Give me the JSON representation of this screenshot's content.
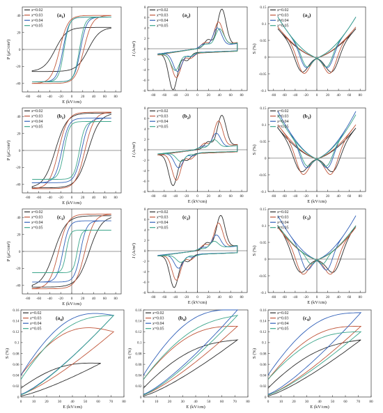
{
  "colors": {
    "x=0.02": "#2b2b2b",
    "x=0.03": "#c0563a",
    "x=0.04": "#2f5fb8",
    "x=0.05": "#3aa58a"
  },
  "legend_labels": [
    "x=0.02",
    "x=0.03",
    "x=0.04",
    "x=0.05"
  ],
  "chart_data": [
    {
      "id": "a1",
      "type": "line",
      "panel_label": "(a1)",
      "kind": "PE",
      "xlabel": "E (kV/cm)",
      "ylabel": "P (μC/cm²)",
      "xlim": [
        -90,
        90
      ],
      "ylim": [
        -50,
        50
      ],
      "xticks": [
        -80,
        -60,
        -40,
        -20,
        0,
        20,
        40,
        60,
        80
      ],
      "yticks": [
        -40,
        -20,
        0,
        20,
        40
      ],
      "series": [
        {
          "name": "x=0.02",
          "emax": 72,
          "pmax": 26,
          "pr": 18,
          "ec": 30
        },
        {
          "name": "x=0.03",
          "emax": 72,
          "pmax": 40,
          "pr": 36,
          "ec": 22
        },
        {
          "name": "x=0.04",
          "emax": 72,
          "pmax": 38,
          "pr": 26,
          "ec": 16
        },
        {
          "name": "x=0.05",
          "emax": 72,
          "pmax": 38,
          "pr": 24,
          "ec": 14
        }
      ]
    },
    {
      "id": "a2",
      "type": "line",
      "panel_label": "(a2)",
      "kind": "JE",
      "xlabel": "",
      "ylabel": "J (A/m²)",
      "xlim": [
        -90,
        90
      ],
      "ylim": [
        -8,
        8
      ],
      "xticks": [
        -80,
        -60,
        -40,
        -20,
        0,
        20,
        40,
        60,
        80
      ],
      "yticks": [
        -8,
        -6,
        -4,
        -2,
        0,
        2,
        4,
        6,
        8
      ],
      "series": [
        {
          "name": "x=0.02",
          "peak": 7.0,
          "ep": 44,
          "base": 1.0
        },
        {
          "name": "x=0.03",
          "peak": 4.5,
          "ep": 38,
          "base": 1.2
        },
        {
          "name": "x=0.04",
          "peak": 3.5,
          "ep": 36,
          "base": 1.0
        },
        {
          "name": "x=0.05",
          "peak": 3.2,
          "ep": 40,
          "base": 1.1
        }
      ]
    },
    {
      "id": "a3",
      "type": "line",
      "panel_label": "(a3)",
      "kind": "SE",
      "xlabel": "",
      "ylabel": "S (%)",
      "xlim": [
        -90,
        90
      ],
      "ylim": [
        -0.1,
        0.15
      ],
      "xticks": [
        -80,
        -60,
        -40,
        -20,
        0,
        20,
        40,
        60,
        80
      ],
      "yticks": [
        -0.1,
        -0.05,
        0,
        0.05,
        0.1,
        0.15
      ],
      "series": [
        {
          "name": "x=0.02",
          "smax": 0.085,
          "smin": -0.07,
          "ec": 30
        },
        {
          "name": "x=0.03",
          "smax": 0.09,
          "smin": -0.07,
          "ec": 26
        },
        {
          "name": "x=0.04",
          "smax": 0.12,
          "smin": -0.05,
          "ec": 22
        },
        {
          "name": "x=0.05",
          "smax": 0.12,
          "smin": -0.045,
          "ec": 20
        }
      ]
    },
    {
      "id": "b1",
      "type": "line",
      "panel_label": "(b1)",
      "kind": "PE",
      "xlabel": "E (kV/cm)",
      "ylabel": "P (μC/cm²)",
      "xlim": [
        -90,
        90
      ],
      "ylim": [
        -50,
        50
      ],
      "xticks": [
        -80,
        -60,
        -40,
        -20,
        0,
        20,
        40,
        60,
        80
      ],
      "yticks": [
        -40,
        -20,
        0,
        20,
        40
      ],
      "series": [
        {
          "name": "x=0.02",
          "emax": 72,
          "pmax": 44,
          "pr": 36,
          "ec": 30
        },
        {
          "name": "x=0.03",
          "emax": 72,
          "pmax": 45,
          "pr": 30,
          "ec": 24
        },
        {
          "name": "x=0.04",
          "emax": 72,
          "pmax": 38,
          "pr": 22,
          "ec": 18
        },
        {
          "name": "x=0.05",
          "emax": 72,
          "pmax": 34,
          "pr": 18,
          "ec": 14
        }
      ]
    },
    {
      "id": "b2",
      "type": "line",
      "panel_label": "(b2)",
      "kind": "JE",
      "xlabel": "E (kV/cm)",
      "ylabel": "J (A/m²)",
      "xlim": [
        -90,
        90
      ],
      "ylim": [
        -8,
        8
      ],
      "xticks": [
        -80,
        -60,
        -40,
        -20,
        0,
        20,
        40,
        60,
        80
      ],
      "yticks": [
        -8,
        -6,
        -4,
        -2,
        0,
        2,
        4,
        6,
        8
      ],
      "series": [
        {
          "name": "x=0.02",
          "peak": 6.0,
          "ep": 44,
          "base": 1.0
        },
        {
          "name": "x=0.03",
          "peak": 5.0,
          "ep": 38,
          "base": 1.0
        },
        {
          "name": "x=0.04",
          "peak": 2.8,
          "ep": 34,
          "base": 0.8
        },
        {
          "name": "x=0.05",
          "peak": 1.6,
          "ep": 30,
          "base": 0.8
        }
      ]
    },
    {
      "id": "b3",
      "type": "line",
      "panel_label": "(b3)",
      "kind": "SE",
      "xlabel": "E (kV/cm)",
      "ylabel": "S (%)",
      "xlim": [
        -90,
        90
      ],
      "ylim": [
        -0.1,
        0.15
      ],
      "xticks": [
        -80,
        -60,
        -40,
        -20,
        0,
        20,
        40,
        60,
        80
      ],
      "yticks": [
        -0.1,
        -0.05,
        0,
        0.05,
        0.1,
        0.15
      ],
      "series": [
        {
          "name": "x=0.02",
          "smax": 0.09,
          "smin": -0.07,
          "ec": 32
        },
        {
          "name": "x=0.03",
          "smax": 0.1,
          "smin": -0.075,
          "ec": 28
        },
        {
          "name": "x=0.04",
          "smax": 0.14,
          "smin": -0.05,
          "ec": 22
        },
        {
          "name": "x=0.05",
          "smax": 0.13,
          "smin": -0.04,
          "ec": 20
        }
      ]
    },
    {
      "id": "c1",
      "type": "line",
      "panel_label": "(c1)",
      "kind": "PE",
      "xlabel": "E (kV/cm)",
      "ylabel": "P (μC/cm²)",
      "xlim": [
        -90,
        90
      ],
      "ylim": [
        -50,
        50
      ],
      "xticks": [
        -80,
        -60,
        -40,
        -20,
        0,
        20,
        40,
        60,
        80
      ],
      "yticks": [
        -40,
        -20,
        0,
        20,
        40
      ],
      "series": [
        {
          "name": "x=0.02",
          "emax": 72,
          "pmax": 42,
          "pr": 36,
          "ec": 32
        },
        {
          "name": "x=0.03",
          "emax": 72,
          "pmax": 44,
          "pr": 28,
          "ec": 24
        },
        {
          "name": "x=0.04",
          "emax": 72,
          "pmax": 36,
          "pr": 18,
          "ec": 16
        },
        {
          "name": "x=0.05",
          "emax": 72,
          "pmax": 25,
          "pr": 10,
          "ec": 10
        }
      ]
    },
    {
      "id": "c2",
      "type": "line",
      "panel_label": "(c2)",
      "kind": "JE",
      "xlabel": "E (kV/cm)",
      "ylabel": "J (A/m²)",
      "xlim": [
        -90,
        90
      ],
      "ylim": [
        -8,
        8
      ],
      "xticks": [
        -80,
        -60,
        -40,
        -20,
        0,
        20,
        40,
        60,
        80
      ],
      "yticks": [
        -8,
        -6,
        -4,
        -2,
        0,
        2,
        4,
        6,
        8
      ],
      "series": [
        {
          "name": "x=0.02",
          "peak": 6.2,
          "ep": 42,
          "base": 1.0
        },
        {
          "name": "x=0.03",
          "peak": 4.8,
          "ep": 38,
          "base": 1.0
        },
        {
          "name": "x=0.04",
          "peak": 2.6,
          "ep": 34,
          "base": 0.9
        },
        {
          "name": "x=0.05",
          "peak": 1.4,
          "ep": 30,
          "base": 1.0
        }
      ]
    },
    {
      "id": "c3",
      "type": "line",
      "panel_label": "(c3)",
      "kind": "SE",
      "xlabel": "E (kV/cm)",
      "ylabel": "S (%)",
      "xlim": [
        -90,
        90
      ],
      "ylim": [
        -0.1,
        0.15
      ],
      "xticks": [
        -80,
        -60,
        -40,
        -20,
        0,
        20,
        40,
        60,
        80
      ],
      "yticks": [
        -0.1,
        -0.05,
        0,
        0.05,
        0.1,
        0.15
      ],
      "series": [
        {
          "name": "x=0.02",
          "smax": 0.1,
          "smin": -0.075,
          "ec": 34
        },
        {
          "name": "x=0.03",
          "smax": 0.095,
          "smin": -0.07,
          "ec": 28
        },
        {
          "name": "x=0.04",
          "smax": 0.13,
          "smin": -0.05,
          "ec": 20
        },
        {
          "name": "x=0.05",
          "smax": 0.1,
          "smin": -0.02,
          "ec": 12
        }
      ]
    },
    {
      "id": "a4",
      "type": "line",
      "panel_label": "(a4)",
      "kind": "US",
      "xlabel": "E (kV/cm)",
      "ylabel": "S (%)",
      "xlim": [
        0,
        80
      ],
      "ylim": [
        0,
        0.16
      ],
      "xticks": [
        0,
        10,
        20,
        30,
        40,
        50,
        60,
        70,
        80
      ],
      "yticks": [
        0,
        0.02,
        0.04,
        0.06,
        0.08,
        0.1,
        0.12,
        0.14,
        0.16
      ],
      "series": [
        {
          "name": "x=0.02",
          "emax": 62,
          "smax": 0.062,
          "s0": 0.002,
          "bulge": 0.018
        },
        {
          "name": "x=0.03",
          "emax": 72,
          "smax": 0.12,
          "s0": 0.005,
          "bulge": 0.045
        },
        {
          "name": "x=0.04",
          "emax": 72,
          "smax": 0.15,
          "s0": 0.005,
          "bulge": 0.05
        },
        {
          "name": "x=0.05",
          "emax": 72,
          "smax": 0.15,
          "s0": 0.004,
          "bulge": 0.04
        }
      ]
    },
    {
      "id": "b4",
      "type": "line",
      "panel_label": "(b4)",
      "kind": "US",
      "xlabel": "E (kV/cm)",
      "ylabel": "S (%)",
      "xlim": [
        0,
        80
      ],
      "ylim": [
        0,
        0.16
      ],
      "xticks": [
        0,
        10,
        20,
        30,
        40,
        50,
        60,
        70,
        80
      ],
      "yticks": [
        0,
        0.02,
        0.04,
        0.06,
        0.08,
        0.1,
        0.12,
        0.14,
        0.16
      ],
      "series": [
        {
          "name": "x=0.02",
          "emax": 72,
          "smax": 0.105,
          "s0": 0.002,
          "bulge": 0.025
        },
        {
          "name": "x=0.03",
          "emax": 72,
          "smax": 0.13,
          "s0": 0.004,
          "bulge": 0.035
        },
        {
          "name": "x=0.04",
          "emax": 72,
          "smax": 0.16,
          "s0": 0.005,
          "bulge": 0.045
        },
        {
          "name": "x=0.05",
          "emax": 72,
          "smax": 0.15,
          "s0": 0.004,
          "bulge": 0.03
        }
      ]
    },
    {
      "id": "c4",
      "type": "line",
      "panel_label": "(c4)",
      "kind": "US",
      "xlabel": "E (kV/cm)",
      "ylabel": "S (%)",
      "xlim": [
        0,
        80
      ],
      "ylim": [
        0,
        0.16
      ],
      "xticks": [
        0,
        10,
        20,
        30,
        40,
        50,
        60,
        70,
        80
      ],
      "yticks": [
        0,
        0.02,
        0.04,
        0.06,
        0.08,
        0.1,
        0.12,
        0.14,
        0.16
      ],
      "series": [
        {
          "name": "x=0.02",
          "emax": 72,
          "smax": 0.105,
          "s0": 0.002,
          "bulge": 0.022
        },
        {
          "name": "x=0.03",
          "emax": 72,
          "smax": 0.13,
          "s0": 0.004,
          "bulge": 0.035
        },
        {
          "name": "x=0.04",
          "emax": 72,
          "smax": 0.155,
          "s0": 0.005,
          "bulge": 0.04
        },
        {
          "name": "x=0.05",
          "emax": 72,
          "smax": 0.12,
          "s0": 0.004,
          "bulge": 0.03
        }
      ]
    }
  ]
}
